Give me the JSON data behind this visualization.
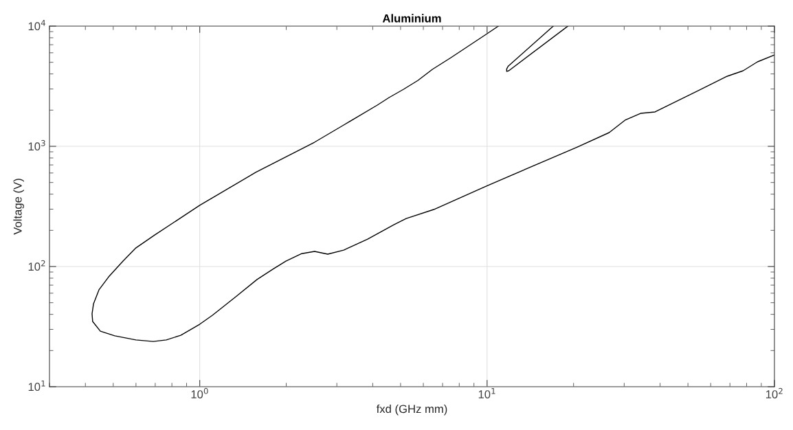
{
  "chart_data": {
    "type": "line",
    "title": "Aluminium",
    "xlabel": "fxd (GHz mm)",
    "ylabel": "Voltage (V)",
    "log": "xy",
    "grid": true,
    "marker": "none",
    "line_style": "solid",
    "xlim": [
      0.3,
      100
    ],
    "ylim": [
      10,
      10000
    ],
    "xticks": [
      {
        "value": 1,
        "label": "10$^{0}$"
      },
      {
        "value": 10,
        "label": "10$^{1}$"
      },
      {
        "value": 100,
        "label": "10$^{2}$"
      }
    ],
    "yticks": [
      {
        "value": 10,
        "label": "10$^{1}$"
      },
      {
        "value": 100,
        "label": "10$^{2}$"
      },
      {
        "value": 1000,
        "label": "10$^{3}$"
      },
      {
        "value": 10000,
        "label": "10$^{4}$"
      }
    ],
    "series": [
      {
        "color": "#000000",
        "x": [
          10.95,
          9.92,
          7.48,
          6.45,
          5.75,
          5.12,
          4.56,
          4.15,
          3.17,
          2.51,
          1.566,
          1.0,
          0.859,
          0.697,
          0.6,
          0.541,
          0.482,
          0.446,
          0.427,
          0.422,
          0.424,
          0.451,
          0.506,
          0.6,
          0.689,
          0.765,
          0.859,
          1.0,
          1.107,
          1.335,
          1.583,
          1.797,
          1.995,
          2.265,
          2.51,
          2.79,
          3.17,
          3.84,
          4.74,
          5.23,
          6.52,
          9.92,
          20.6,
          26.6,
          30.2,
          34.2,
          38.4,
          68.5,
          77.8,
          87.3,
          100
        ],
        "values": [
          10000,
          8540,
          5460,
          4365,
          3538,
          2980,
          2545,
          2203,
          1504,
          1082,
          607,
          323,
          254,
          183,
          143,
          111,
          82,
          64,
          49,
          40.4,
          34.9,
          29.0,
          26.5,
          24.5,
          23.8,
          24.5,
          26.8,
          33.1,
          39.3,
          56,
          78,
          95,
          111,
          128,
          133.6,
          126.7,
          137,
          169,
          223,
          251,
          298,
          466,
          986,
          1301,
          1649,
          1880,
          1931,
          3828,
          4253,
          5045,
          5754
        ]
      },
      {
        "color": "#000000",
        "x": [
          17.0,
          11.85,
          11.7,
          11.7,
          11.9,
          19.1
        ],
        "values": [
          10000,
          4650,
          4400,
          4200,
          4250,
          10000
        ]
      }
    ]
  }
}
